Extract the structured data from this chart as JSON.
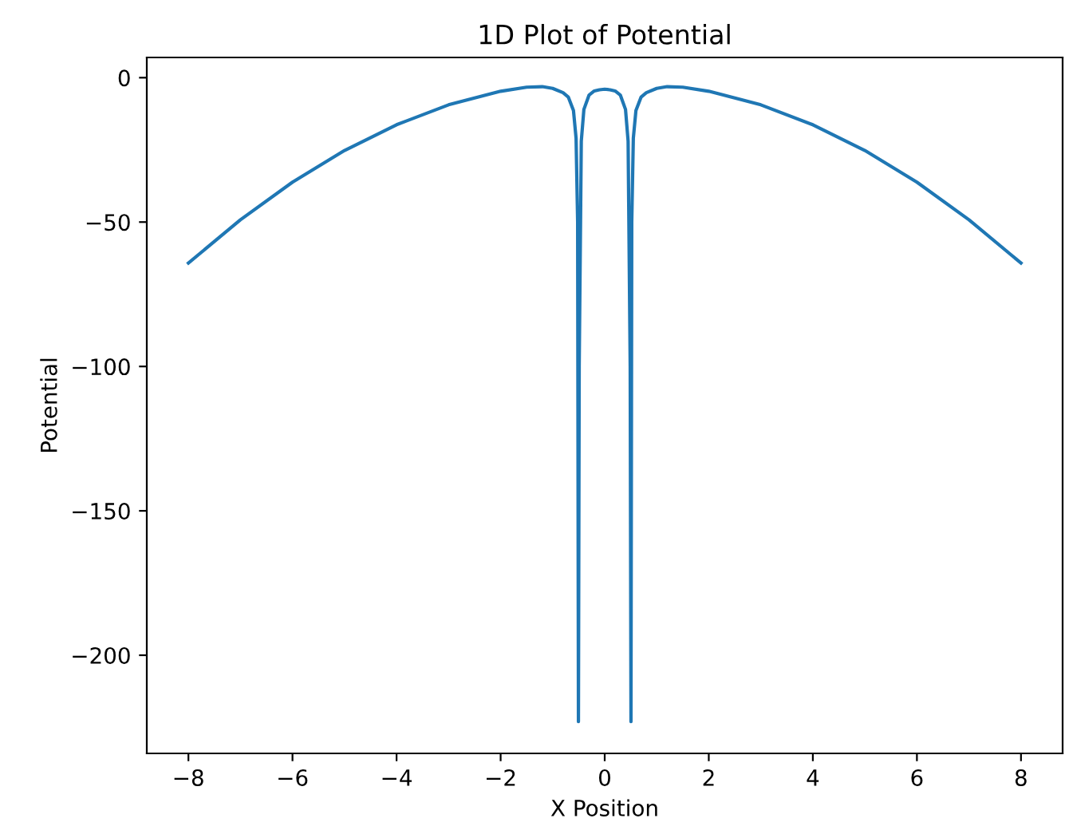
{
  "chart_data": {
    "type": "line",
    "title": "1D Plot of Potential",
    "xlabel": "X Position",
    "ylabel": "Potential",
    "x": [
      -8,
      -7,
      -6,
      -5,
      -4,
      -3,
      -2,
      -1.5,
      -1.2,
      -1.0,
      -0.8,
      -0.7,
      -0.6,
      -0.55,
      -0.52,
      -0.505,
      -0.49,
      -0.45,
      -0.4,
      -0.3,
      -0.2,
      -0.1,
      0,
      0.1,
      0.2,
      0.3,
      0.4,
      0.45,
      0.49,
      0.505,
      0.52,
      0.55,
      0.6,
      0.7,
      0.8,
      1.0,
      1.2,
      1.5,
      2,
      3,
      4,
      5,
      6,
      7,
      8
    ],
    "series": [
      {
        "color": "#1f77b4",
        "values": [
          -64.2,
          -49.2,
          -36.2,
          -25.2,
          -16.3,
          -9.4,
          -4.7,
          -3.3,
          -3.1,
          -3.7,
          -5.2,
          -6.7,
          -11.4,
          -21,
          -50,
          -223,
          -100,
          -22,
          -11,
          -6,
          -4.6,
          -4.2,
          -4.0,
          -4.2,
          -4.6,
          -6,
          -11,
          -22,
          -100,
          -223,
          -50,
          -21,
          -11.4,
          -6.7,
          -5.2,
          -3.7,
          -3.1,
          -3.3,
          -4.7,
          -9.4,
          -16.3,
          -25.2,
          -36.2,
          -49.2,
          -64.2
        ]
      }
    ],
    "xlim": [
      -8.8,
      8.8
    ],
    "ylim": [
      -234,
      7
    ],
    "xticks": [
      {
        "value": -8,
        "label": "−8"
      },
      {
        "value": -6,
        "label": "−6"
      },
      {
        "value": -4,
        "label": "−4"
      },
      {
        "value": -2,
        "label": "−2"
      },
      0,
      2,
      4,
      6,
      8
    ],
    "yticks": [
      {
        "value": -200,
        "label": "−200"
      },
      {
        "value": -150,
        "label": "−150"
      },
      {
        "value": -100,
        "label": "−100"
      },
      {
        "value": -50,
        "label": "−50"
      },
      0
    ],
    "grid": false,
    "legend": false
  }
}
